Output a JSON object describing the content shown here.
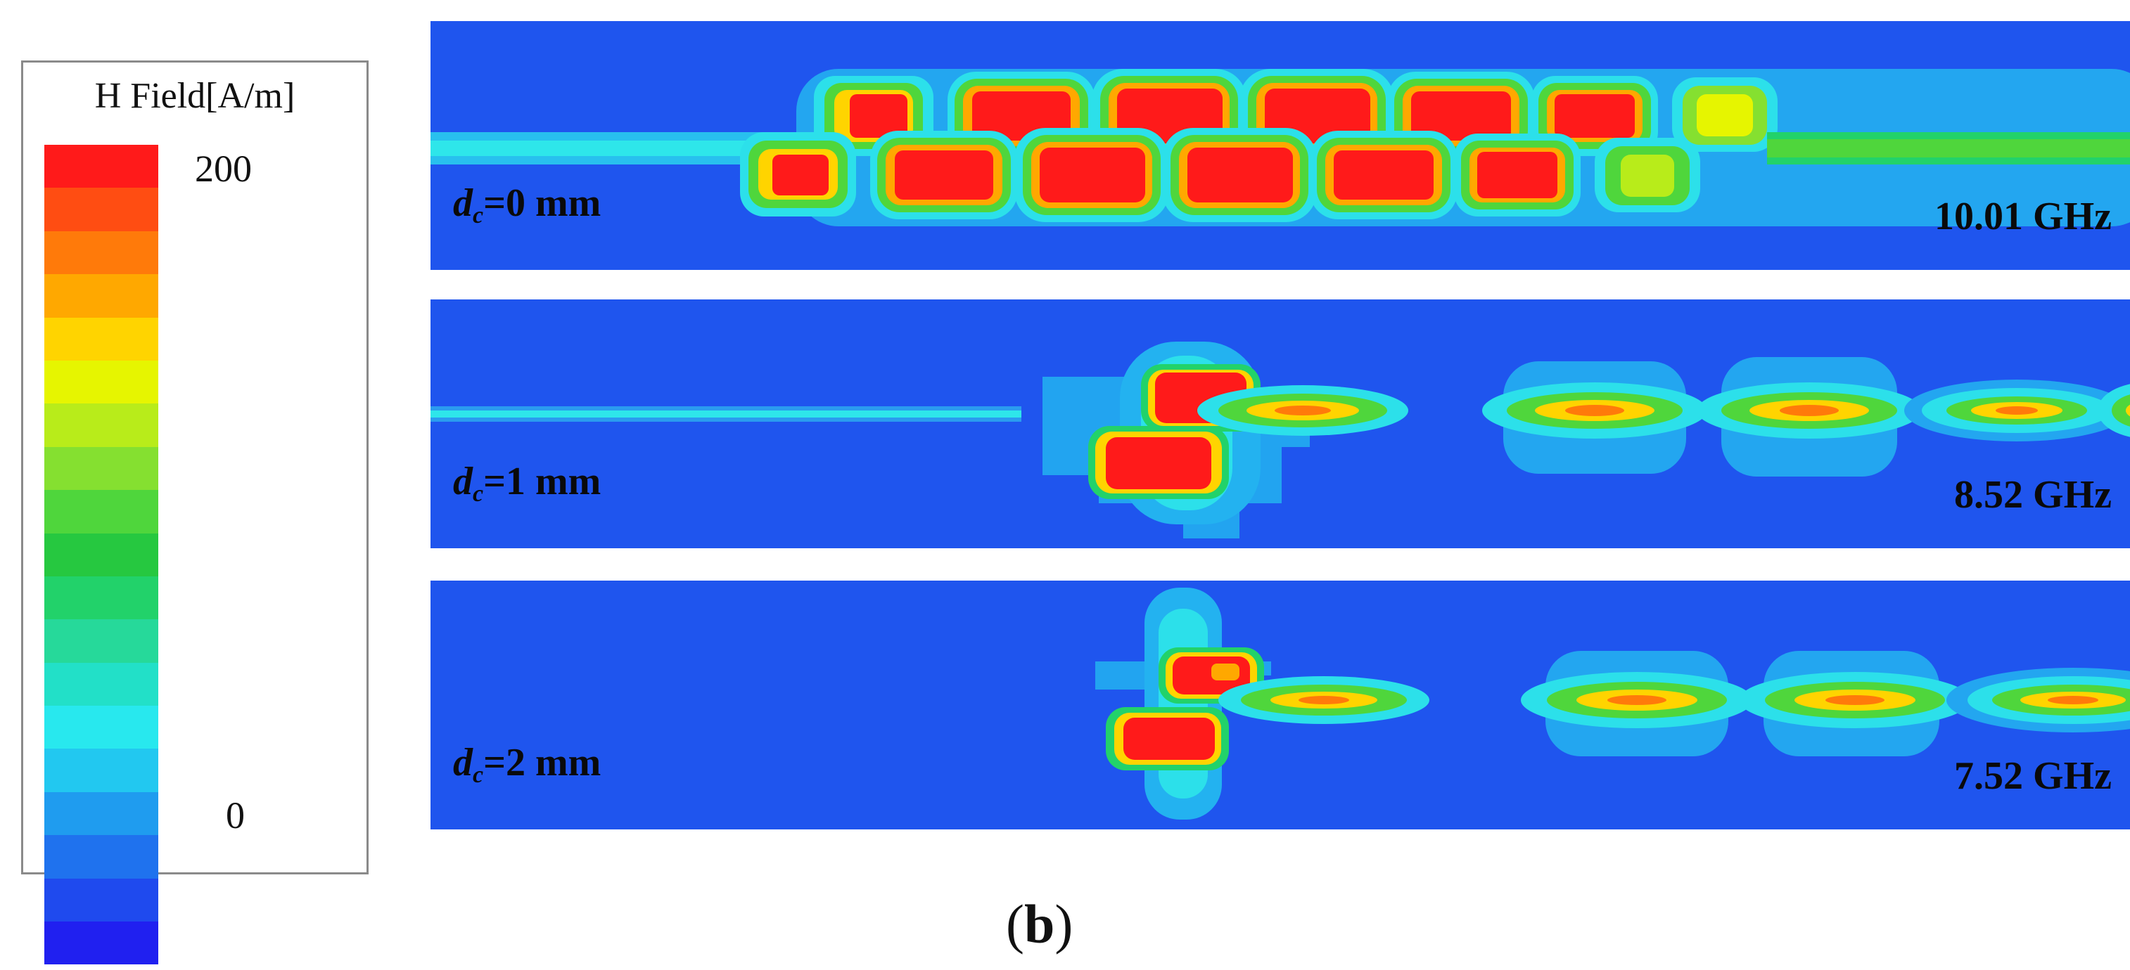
{
  "legend": {
    "title": "H Field[A/m]",
    "max_label": "200",
    "min_label": "0",
    "colors": [
      "#ff1a1a",
      "#ff4d12",
      "#ff7a0a",
      "#ffa800",
      "#ffd400",
      "#e6f500",
      "#b8ec1a",
      "#85e030",
      "#4fd63c",
      "#26c840",
      "#22d26a",
      "#26d99a",
      "#22e0c8",
      "#28e8ee",
      "#22c8f0",
      "#1f9cef",
      "#1f72ee",
      "#1f4aee",
      "#2020f0"
    ]
  },
  "panels": [
    {
      "name": "dc0",
      "dc_symbol": "d",
      "dc_sub": "c",
      "dc_value": "=0 mm",
      "frequency": "10.01 GHz"
    },
    {
      "name": "dc1",
      "dc_symbol": "d",
      "dc_sub": "c",
      "dc_value": "=1 mm",
      "frequency": "8.52 GHz"
    },
    {
      "name": "dc2",
      "dc_symbol": "d",
      "dc_sub": "c",
      "dc_value": "=2 mm",
      "frequency": "7.52 GHz"
    }
  ],
  "caption": {
    "open": "(",
    "letter": "b",
    "close": ")"
  }
}
